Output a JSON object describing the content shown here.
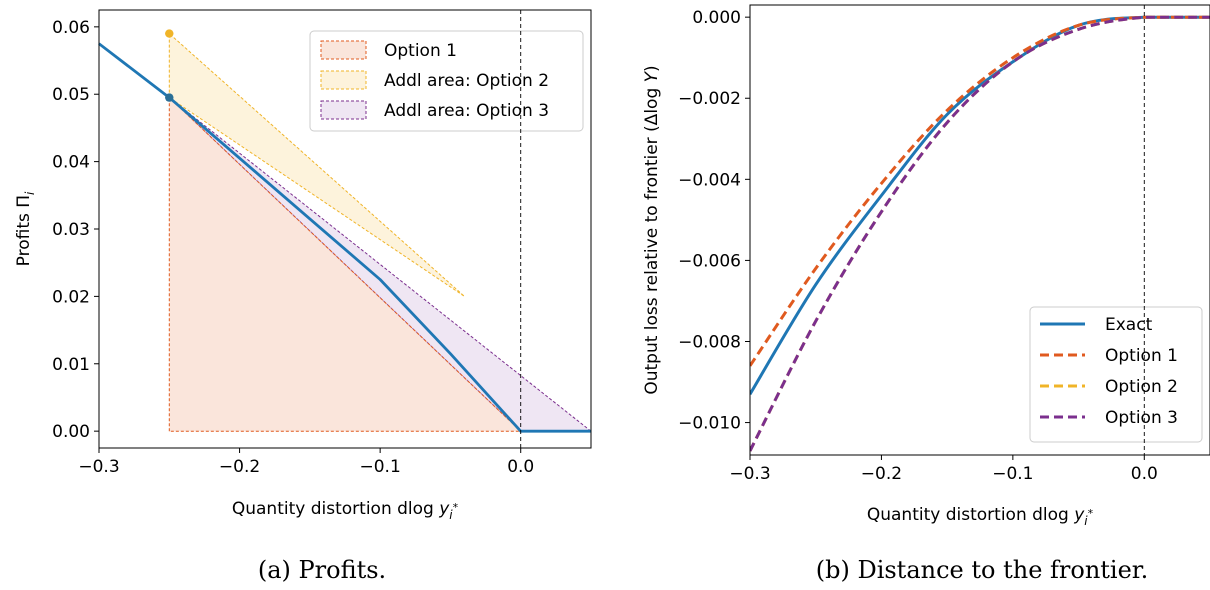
{
  "colors": {
    "exact": "#1f77b4",
    "option1": "#e05a1f",
    "option2": "#f0b428",
    "option3": "#7b2f8e",
    "option1_fill": "#f6d3c3",
    "option2_fill": "#fbe9c0",
    "option3_fill": "#e2d2ea"
  },
  "captions": {
    "a": "(a) Profits.",
    "b": "(b) Distance to the frontier."
  },
  "chart_data": [
    {
      "type": "line",
      "xlabel_main": "Quantity distortion dlog ",
      "xlabel_var": "y",
      "xlabel_sub": "i",
      "xlabel_sup": "*",
      "ylabel_main": "Profits Π",
      "ylabel_sub": "i",
      "xlim": [
        -0.3,
        0.05
      ],
      "ylim": [
        -0.0025,
        0.0625
      ],
      "xticks": [
        -0.3,
        -0.2,
        -0.1,
        0.0
      ],
      "xtick_labels": [
        "−0.3",
        "−0.2",
        "−0.1",
        "0.0"
      ],
      "yticks": [
        0.0,
        0.01,
        0.02,
        0.03,
        0.04,
        0.05,
        0.06
      ],
      "ytick_labels": [
        "0.00",
        "0.01",
        "0.02",
        "0.03",
        "0.04",
        "0.05",
        "0.06"
      ],
      "vline_x": 0.0,
      "legend_position": "top-right",
      "legend": [
        "Option 1",
        "Addl area: Option 2",
        "Addl area: Option 3"
      ],
      "areas": [
        {
          "name": "Option 1",
          "points": [
            [
              -0.25,
              0.0
            ],
            [
              -0.25,
              0.0495
            ],
            [
              0.0,
              0.0
            ]
          ]
        },
        {
          "name": "Addl area: Option 2",
          "points": [
            [
              -0.25,
              0.0495
            ],
            [
              -0.25,
              0.059
            ],
            [
              -0.04,
              0.02
            ]
          ]
        },
        {
          "name": "Addl area: Option 3",
          "points": [
            [
              -0.25,
              0.0495
            ],
            [
              0.0,
              0.0
            ],
            [
              0.05,
              0.0
            ]
          ]
        }
      ],
      "series": [
        {
          "x": [
            -0.3,
            -0.25,
            -0.2,
            -0.15,
            -0.1,
            -0.05,
            0.0,
            0.05
          ],
          "values": [
            0.0575,
            0.0495,
            0.0405,
            0.0315,
            0.0225,
            0.0115,
            0.0,
            0.0
          ]
        }
      ],
      "points": [
        {
          "x": -0.25,
          "y": 0.059
        },
        {
          "x": -0.25,
          "y": 0.0495
        }
      ]
    },
    {
      "type": "line",
      "xlabel_main": "Quantity distortion dlog ",
      "xlabel_var": "y",
      "xlabel_sub": "i",
      "xlabel_sup": "*",
      "ylabel_main": "Output loss relative to frontier (Δlog ",
      "ylabel_var": "Y",
      "ylabel_close": ")",
      "xlim": [
        -0.3,
        0.05
      ],
      "ylim": [
        -0.0108,
        0.0003
      ],
      "xticks": [
        -0.3,
        -0.2,
        -0.1,
        0.0
      ],
      "xtick_labels": [
        "−0.3",
        "−0.2",
        "−0.1",
        "0.0"
      ],
      "yticks": [
        0.0,
        -0.002,
        -0.004,
        -0.006,
        -0.008,
        -0.01
      ],
      "ytick_labels": [
        "0.000",
        "−0.002",
        "−0.004",
        "−0.006",
        "−0.008",
        "−0.010"
      ],
      "vline_x": 0.0,
      "legend_position": "bottom-right",
      "series": [
        {
          "name": "Exact",
          "x": [
            -0.3,
            -0.25,
            -0.2,
            -0.15,
            -0.1,
            -0.05,
            0.0,
            0.05
          ],
          "values": [
            -0.0093,
            -0.0066,
            -0.0044,
            -0.0024,
            -0.0011,
            -0.0002,
            0.0,
            0.0
          ]
        },
        {
          "name": "Option 1",
          "x": [
            -0.3,
            -0.25,
            -0.2,
            -0.15,
            -0.1,
            -0.05,
            0.0,
            0.05
          ],
          "values": [
            -0.0086,
            -0.0062,
            -0.0041,
            -0.0023,
            -0.001,
            -0.0002,
            0.0,
            0.0
          ]
        },
        {
          "name": "Option 2",
          "x": [
            -0.3,
            -0.25,
            -0.2,
            -0.15,
            -0.1,
            -0.05,
            0.0,
            0.05
          ],
          "values": [
            -0.0107,
            -0.0075,
            -0.0048,
            -0.0026,
            -0.0011,
            -0.0003,
            0.0,
            0.0
          ]
        },
        {
          "name": "Option 3",
          "x": [
            -0.3,
            -0.25,
            -0.2,
            -0.15,
            -0.1,
            -0.05,
            0.0,
            0.05
          ],
          "values": [
            -0.0107,
            -0.0075,
            -0.0048,
            -0.0026,
            -0.0011,
            -0.0003,
            0.0,
            0.0
          ]
        }
      ]
    }
  ]
}
